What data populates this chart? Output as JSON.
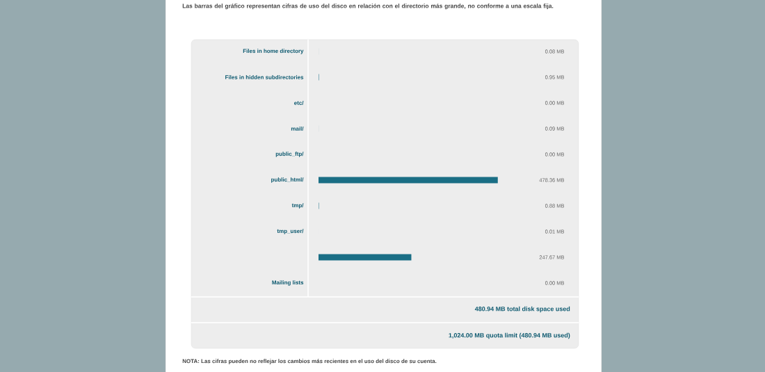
{
  "chart_data": {
    "type": "bar",
    "orientation": "horizontal",
    "title": "Las barras del gráfico representan cifras de uso del disco en relación con el directorio más grande, no conforme a una escala fija.",
    "categories": [
      "Files in home directory",
      "Files in hidden subdirectories",
      "etc/",
      "mail/",
      "public_ftp/",
      "public_html/",
      "tmp/",
      "tmp_user/",
      null,
      "Mailing lists"
    ],
    "values": [
      0.08,
      0.95,
      0.0,
      0.09,
      0.0,
      478.36,
      0.88,
      0.01,
      247.67,
      0.0
    ],
    "value_labels": [
      "0.08 MB",
      "0.95 MB",
      "0.00 MB",
      "0.09 MB",
      "0.00 MB",
      "478.36 MB",
      "0.88 MB",
      "0.01 MB",
      "247.67 MB",
      "0.00 MB"
    ],
    "color": "#1a6e85",
    "tick_labels": "y",
    "annotations": [
      "480.94 MB total disk space used",
      "1,024.00 MB quota limit (480.94 MB used)",
      "NOTA: Las cifras pueden no reflejar los cambios más recientes en el uso del disco de su cuenta."
    ]
  }
}
